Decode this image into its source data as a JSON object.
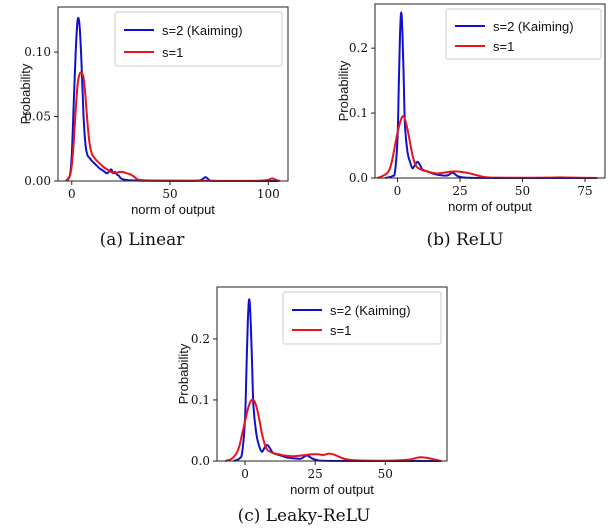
{
  "colors": {
    "kaiming": "#1010cc",
    "s1": "#e8141c"
  },
  "chart_data": [
    {
      "type": "line",
      "caption": "(a) Linear",
      "xlabel": "norm of output",
      "ylabel": "Probability",
      "xlim": [
        -7,
        110
      ],
      "ylim": [
        0,
        0.135
      ],
      "xticks": [
        0,
        50,
        100
      ],
      "yticks": [
        0.0,
        0.05,
        0.1
      ],
      "ytick_labels": [
        "0.00",
        "0.05",
        "0.10"
      ],
      "legend_position": "top-right",
      "series": [
        {
          "name": "s=2 (Kaiming)",
          "color": "#1010cc",
          "x": [
            -3,
            -1,
            0,
            1,
            2,
            3,
            4,
            5,
            6,
            7,
            8,
            9,
            10,
            12,
            14,
            16,
            18,
            20,
            21,
            22,
            23,
            24,
            25,
            27,
            30,
            40,
            60,
            65,
            67,
            68,
            69,
            70,
            72,
            80,
            100,
            105
          ],
          "y": [
            0,
            0.004,
            0.02,
            0.06,
            0.1,
            0.125,
            0.12,
            0.09,
            0.05,
            0.028,
            0.02,
            0.018,
            0.016,
            0.013,
            0.01,
            0.008,
            0.006,
            0.009,
            0.006,
            0.007,
            0.005,
            0.004,
            0.002,
            0.001,
            0.0005,
            0.0002,
            0.0001,
            0.0004,
            0.002,
            0.003,
            0.002,
            0.0006,
            0.0001,
            0,
            0,
            0
          ]
        },
        {
          "name": "s=1",
          "color": "#e8141c",
          "x": [
            -3,
            -1,
            0,
            1,
            2,
            3,
            4,
            5,
            6,
            7,
            8,
            9,
            10,
            12,
            14,
            16,
            18,
            20,
            22,
            24,
            26,
            28,
            30,
            32,
            34,
            40,
            60,
            90,
            98,
            100,
            102,
            104,
            106
          ],
          "y": [
            0,
            0.004,
            0.012,
            0.03,
            0.055,
            0.075,
            0.083,
            0.084,
            0.08,
            0.065,
            0.045,
            0.03,
            0.022,
            0.017,
            0.014,
            0.011,
            0.009,
            0.007,
            0.006,
            0.007,
            0.007,
            0.006,
            0.005,
            0.003,
            0.001,
            0.0004,
            0.0002,
            0.0001,
            0.0005,
            0.001,
            0.002,
            0.0008,
            0
          ]
        }
      ]
    },
    {
      "type": "line",
      "caption": "(b) ReLU",
      "xlabel": "norm of output",
      "ylabel": "Probability",
      "xlim": [
        -9,
        83
      ],
      "ylim": [
        0,
        0.268
      ],
      "xticks": [
        0,
        25,
        50,
        75
      ],
      "yticks": [
        0.0,
        0.1,
        0.2
      ],
      "ytick_labels": [
        "0.0",
        "0.1",
        "0.2"
      ],
      "legend_position": "top-right",
      "series": [
        {
          "name": "s=2 (Kaiming)",
          "color": "#1010cc",
          "x": [
            -5,
            -2,
            -1,
            0,
            0.5,
            1,
            1.5,
            2,
            2.5,
            3,
            4,
            5,
            6,
            7,
            8,
            9,
            10,
            12,
            14,
            16,
            18,
            20,
            22,
            24,
            26,
            28,
            30,
            40,
            60,
            80
          ],
          "y": [
            0,
            0.003,
            0.01,
            0.06,
            0.14,
            0.22,
            0.255,
            0.22,
            0.15,
            0.08,
            0.04,
            0.025,
            0.015,
            0.02,
            0.025,
            0.02,
            0.013,
            0.01,
            0.007,
            0.005,
            0.004,
            0.004,
            0.008,
            0.003,
            0.001,
            0.0004,
            0.0002,
            0.0001,
            0,
            0
          ]
        },
        {
          "name": "s=1",
          "color": "#e8141c",
          "x": [
            -8,
            -6,
            -4,
            -3,
            -2,
            -1,
            0,
            1,
            2,
            3,
            4,
            5,
            6,
            7,
            8,
            10,
            12,
            14,
            16,
            18,
            20,
            22,
            24,
            26,
            28,
            30,
            32,
            34,
            36,
            40,
            50,
            60,
            65,
            70,
            75,
            80
          ],
          "y": [
            0,
            0.003,
            0.008,
            0.015,
            0.03,
            0.05,
            0.07,
            0.085,
            0.095,
            0.09,
            0.075,
            0.055,
            0.035,
            0.022,
            0.016,
            0.012,
            0.01,
            0.008,
            0.007,
            0.008,
            0.009,
            0.01,
            0.01,
            0.009,
            0.008,
            0.006,
            0.004,
            0.002,
            0.001,
            0.0005,
            0.0003,
            0.0006,
            0.001,
            0.0005,
            0.0002,
            0
          ]
        }
      ]
    },
    {
      "type": "line",
      "caption": "(c) Leaky-ReLU",
      "xlabel": "norm of output",
      "ylabel": "Probability",
      "xlim": [
        -10,
        72
      ],
      "ylim": [
        0,
        0.285
      ],
      "xticks": [
        0,
        25,
        50
      ],
      "yticks": [
        0.0,
        0.1,
        0.2
      ],
      "ytick_labels": [
        "0.0",
        "0.1",
        "0.2"
      ],
      "legend_position": "top-right",
      "series": [
        {
          "name": "s=2 (Kaiming)",
          "color": "#1010cc",
          "x": [
            -4,
            -2,
            -1,
            0,
            0.5,
            1,
            1.5,
            2,
            2.5,
            3,
            4,
            5,
            6,
            7,
            8,
            9,
            10,
            12,
            14,
            16,
            18,
            20,
            22,
            24,
            26,
            28,
            30,
            40,
            60,
            70
          ],
          "y": [
            0,
            0.004,
            0.015,
            0.07,
            0.15,
            0.23,
            0.265,
            0.23,
            0.16,
            0.09,
            0.045,
            0.025,
            0.015,
            0.022,
            0.026,
            0.02,
            0.013,
            0.01,
            0.007,
            0.005,
            0.004,
            0.004,
            0.009,
            0.004,
            0.001,
            0.0004,
            0.0002,
            0.0001,
            0,
            0
          ]
        },
        {
          "name": "s=1",
          "color": "#e8141c",
          "x": [
            -7,
            -5,
            -4,
            -3,
            -2,
            -1,
            0,
            1,
            2,
            3,
            4,
            5,
            6,
            7,
            8,
            10,
            12,
            14,
            16,
            18,
            20,
            22,
            24,
            26,
            28,
            30,
            32,
            34,
            36,
            40,
            50,
            58,
            62,
            65,
            68,
            70
          ],
          "y": [
            0,
            0.003,
            0.007,
            0.013,
            0.025,
            0.045,
            0.065,
            0.085,
            0.098,
            0.1,
            0.09,
            0.07,
            0.045,
            0.028,
            0.018,
            0.013,
            0.011,
            0.009,
            0.008,
            0.008,
            0.009,
            0.01,
            0.011,
            0.011,
            0.01,
            0.012,
            0.01,
            0.006,
            0.003,
            0.001,
            0.0004,
            0.002,
            0.006,
            0.005,
            0.002,
            0
          ]
        }
      ]
    }
  ]
}
